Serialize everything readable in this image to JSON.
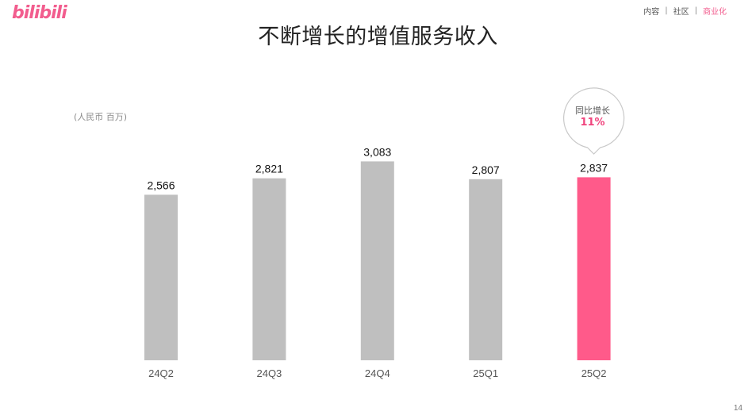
{
  "logo_text": "bilibili",
  "nav": {
    "items": [
      "内容",
      "社区",
      "商业化"
    ],
    "separator": "|",
    "active_index": 2
  },
  "title": "不断增长的增值服务收入",
  "unit_label": "(人民币 百万)",
  "callout": {
    "line1": "同比增长",
    "line2": "11%"
  },
  "page_number": "14",
  "colors": {
    "brand": "#f25d8e",
    "bar_default": "#bfbfbf",
    "bar_highlight": "#ff5a8a",
    "highlight_text": "#f0457e"
  },
  "chart_data": {
    "type": "bar",
    "title": "不断增长的增值服务收入",
    "ylabel": "(人民币 百万)",
    "categories": [
      "24Q2",
      "24Q3",
      "24Q4",
      "25Q1",
      "25Q2"
    ],
    "values": [
      2566,
      2821,
      3083,
      2807,
      2837
    ],
    "value_labels": [
      "2,566",
      "2,821",
      "3,083",
      "2,807",
      "2,837"
    ],
    "highlight_category": "25Q2",
    "annotation": "同比增长 11%",
    "grid": false,
    "legend": false
  }
}
